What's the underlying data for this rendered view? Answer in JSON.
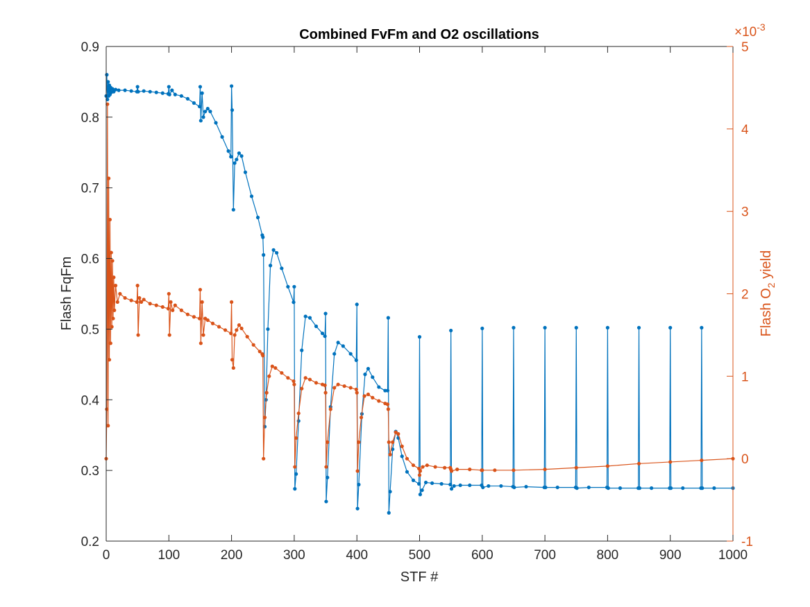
{
  "chart_data": {
    "type": "line",
    "title": "Combined FvFm and O2 oscillations",
    "xlabel": "STF #",
    "ylabel_left": "Flash FqFm",
    "ylabel_right": {
      "prefix": "Flash O",
      "subscript": "2",
      "suffix": " yield"
    },
    "right_exponent": {
      "base": "×10",
      "power": "-3"
    },
    "xlim": [
      0,
      1000
    ],
    "ylim_left": [
      0.2,
      0.9
    ],
    "ylim_right": [
      -1,
      5
    ],
    "x_ticks": [
      "0",
      "100",
      "200",
      "300",
      "400",
      "500",
      "600",
      "700",
      "800",
      "900",
      "1000"
    ],
    "y_ticks_left": [
      "0.2",
      "0.3",
      "0.4",
      "0.5",
      "0.6",
      "0.7",
      "0.8",
      "0.9"
    ],
    "y_ticks_right": [
      "-1",
      "0",
      "1",
      "2",
      "3",
      "4",
      "5"
    ],
    "grid": false,
    "colors": {
      "left": "#0072BD",
      "right": "#D95319",
      "axis": "#262626"
    },
    "series": [
      {
        "axis": "left",
        "color": "#0072BD",
        "points": [
          [
            0,
            0.83
          ],
          [
            1,
            0.86
          ],
          [
            2,
            0.825
          ],
          [
            3,
            0.85
          ],
          [
            4,
            0.83
          ],
          [
            5,
            0.845
          ],
          [
            6,
            0.832
          ],
          [
            7,
            0.842
          ],
          [
            8,
            0.835
          ],
          [
            10,
            0.84
          ],
          [
            12,
            0.836
          ],
          [
            15,
            0.839
          ],
          [
            20,
            0.838
          ],
          [
            30,
            0.838
          ],
          [
            40,
            0.837
          ],
          [
            49,
            0.836
          ],
          [
            50,
            0.843
          ],
          [
            51,
            0.836
          ],
          [
            60,
            0.837
          ],
          [
            70,
            0.836
          ],
          [
            80,
            0.835
          ],
          [
            90,
            0.834
          ],
          [
            99,
            0.833
          ],
          [
            100,
            0.843
          ],
          [
            101,
            0.832
          ],
          [
            105,
            0.838
          ],
          [
            110,
            0.832
          ],
          [
            120,
            0.83
          ],
          [
            130,
            0.826
          ],
          [
            140,
            0.82
          ],
          [
            149,
            0.815
          ],
          [
            150,
            0.843
          ],
          [
            151,
            0.795
          ],
          [
            153,
            0.834
          ],
          [
            155,
            0.8
          ],
          [
            158,
            0.808
          ],
          [
            162,
            0.812
          ],
          [
            166,
            0.808
          ],
          [
            175,
            0.792
          ],
          [
            185,
            0.772
          ],
          [
            195,
            0.752
          ],
          [
            199,
            0.744
          ],
          [
            200,
            0.844
          ],
          [
            201,
            0.81
          ],
          [
            203,
            0.669
          ],
          [
            205,
            0.735
          ],
          [
            208,
            0.74
          ],
          [
            212,
            0.749
          ],
          [
            216,
            0.745
          ],
          [
            222,
            0.722
          ],
          [
            232,
            0.688
          ],
          [
            242,
            0.658
          ],
          [
            249,
            0.633
          ],
          [
            250,
            0.63
          ],
          [
            251,
            0.605
          ],
          [
            253,
            0.362
          ],
          [
            255,
            0.4
          ],
          [
            258,
            0.5
          ],
          [
            262,
            0.59
          ],
          [
            267,
            0.612
          ],
          [
            272,
            0.608
          ],
          [
            280,
            0.586
          ],
          [
            290,
            0.56
          ],
          [
            299,
            0.538
          ],
          [
            300,
            0.56
          ],
          [
            301,
            0.274
          ],
          [
            303,
            0.295
          ],
          [
            307,
            0.37
          ],
          [
            312,
            0.47
          ],
          [
            318,
            0.518
          ],
          [
            325,
            0.516
          ],
          [
            335,
            0.504
          ],
          [
            345,
            0.494
          ],
          [
            349,
            0.49
          ],
          [
            350,
            0.522
          ],
          [
            351,
            0.256
          ],
          [
            353,
            0.29
          ],
          [
            358,
            0.39
          ],
          [
            364,
            0.465
          ],
          [
            370,
            0.481
          ],
          [
            378,
            0.476
          ],
          [
            390,
            0.465
          ],
          [
            399,
            0.456
          ],
          [
            400,
            0.535
          ],
          [
            401,
            0.246
          ],
          [
            403,
            0.28
          ],
          [
            408,
            0.38
          ],
          [
            413,
            0.436
          ],
          [
            418,
            0.444
          ],
          [
            425,
            0.432
          ],
          [
            435,
            0.418
          ],
          [
            445,
            0.413
          ],
          [
            449,
            0.413
          ],
          [
            450,
            0.516
          ],
          [
            451,
            0.24
          ],
          [
            453,
            0.27
          ],
          [
            457,
            0.33
          ],
          [
            462,
            0.355
          ],
          [
            466,
            0.346
          ],
          [
            472,
            0.32
          ],
          [
            480,
            0.298
          ],
          [
            490,
            0.286
          ],
          [
            499,
            0.281
          ],
          [
            500,
            0.489
          ],
          [
            501,
            0.266
          ],
          [
            504,
            0.272
          ],
          [
            510,
            0.283
          ],
          [
            520,
            0.282
          ],
          [
            535,
            0.281
          ],
          [
            549,
            0.28
          ],
          [
            550,
            0.498
          ],
          [
            551,
            0.274
          ],
          [
            555,
            0.278
          ],
          [
            565,
            0.279
          ],
          [
            580,
            0.279
          ],
          [
            599,
            0.279
          ],
          [
            600,
            0.501
          ],
          [
            601,
            0.276
          ],
          [
            610,
            0.278
          ],
          [
            630,
            0.278
          ],
          [
            649,
            0.277
          ],
          [
            650,
            0.502
          ],
          [
            651,
            0.276
          ],
          [
            670,
            0.277
          ],
          [
            699,
            0.276
          ],
          [
            700,
            0.502
          ],
          [
            701,
            0.276
          ],
          [
            720,
            0.276
          ],
          [
            749,
            0.276
          ],
          [
            750,
            0.502
          ],
          [
            751,
            0.275
          ],
          [
            770,
            0.276
          ],
          [
            799,
            0.276
          ],
          [
            800,
            0.502
          ],
          [
            801,
            0.275
          ],
          [
            820,
            0.275
          ],
          [
            849,
            0.275
          ],
          [
            850,
            0.502
          ],
          [
            851,
            0.275
          ],
          [
            870,
            0.275
          ],
          [
            899,
            0.275
          ],
          [
            900,
            0.502
          ],
          [
            901,
            0.275
          ],
          [
            920,
            0.275
          ],
          [
            949,
            0.275
          ],
          [
            950,
            0.502
          ],
          [
            951,
            0.275
          ],
          [
            970,
            0.275
          ],
          [
            1000,
            0.275
          ]
        ]
      },
      {
        "axis": "right",
        "color": "#D95319",
        "points": [
          [
            0,
            0.0
          ],
          [
            1,
            0.6
          ],
          [
            2,
            4.3
          ],
          [
            3,
            0.4
          ],
          [
            4,
            3.4
          ],
          [
            5,
            1.2
          ],
          [
            6,
            2.9
          ],
          [
            7,
            1.4
          ],
          [
            8,
            2.5
          ],
          [
            9,
            1.6
          ],
          [
            10,
            2.4
          ],
          [
            11,
            1.7
          ],
          [
            12,
            2.2
          ],
          [
            13,
            1.8
          ],
          [
            15,
            2.1
          ],
          [
            18,
            1.9
          ],
          [
            22,
            2.0
          ],
          [
            30,
            1.95
          ],
          [
            40,
            1.92
          ],
          [
            49,
            1.9
          ],
          [
            50,
            2.1
          ],
          [
            51,
            1.5
          ],
          [
            53,
            1.95
          ],
          [
            56,
            1.9
          ],
          [
            60,
            1.93
          ],
          [
            70,
            1.88
          ],
          [
            80,
            1.86
          ],
          [
            90,
            1.84
          ],
          [
            99,
            1.82
          ],
          [
            100,
            2.0
          ],
          [
            101,
            1.5
          ],
          [
            103,
            1.9
          ],
          [
            106,
            1.8
          ],
          [
            110,
            1.86
          ],
          [
            120,
            1.8
          ],
          [
            130,
            1.75
          ],
          [
            140,
            1.72
          ],
          [
            149,
            1.7
          ],
          [
            150,
            2.05
          ],
          [
            151,
            1.4
          ],
          [
            153,
            1.9
          ],
          [
            155,
            1.5
          ],
          [
            158,
            1.7
          ],
          [
            162,
            1.68
          ],
          [
            170,
            1.64
          ],
          [
            180,
            1.6
          ],
          [
            190,
            1.56
          ],
          [
            199,
            1.52
          ],
          [
            200,
            1.9
          ],
          [
            201,
            1.2
          ],
          [
            203,
            1.1
          ],
          [
            205,
            1.5
          ],
          [
            208,
            1.56
          ],
          [
            212,
            1.62
          ],
          [
            216,
            1.58
          ],
          [
            225,
            1.48
          ],
          [
            235,
            1.38
          ],
          [
            245,
            1.3
          ],
          [
            249,
            1.27
          ],
          [
            250,
            1.25
          ],
          [
            251,
            0.0
          ],
          [
            253,
            0.5
          ],
          [
            256,
            0.8
          ],
          [
            260,
            1.0
          ],
          [
            265,
            1.12
          ],
          [
            270,
            1.1
          ],
          [
            280,
            1.04
          ],
          [
            290,
            0.98
          ],
          [
            299,
            0.94
          ],
          [
            300,
            0.9
          ],
          [
            301,
            -0.1
          ],
          [
            303,
            0.25
          ],
          [
            307,
            0.55
          ],
          [
            312,
            0.85
          ],
          [
            318,
            0.98
          ],
          [
            325,
            0.96
          ],
          [
            335,
            0.92
          ],
          [
            345,
            0.9
          ],
          [
            349,
            0.89
          ],
          [
            350,
            0.8
          ],
          [
            351,
            -0.1
          ],
          [
            353,
            0.2
          ],
          [
            358,
            0.6
          ],
          [
            364,
            0.86
          ],
          [
            370,
            0.9
          ],
          [
            380,
            0.88
          ],
          [
            390,
            0.86
          ],
          [
            399,
            0.84
          ],
          [
            400,
            0.8
          ],
          [
            401,
            -0.15
          ],
          [
            403,
            0.2
          ],
          [
            407,
            0.5
          ],
          [
            412,
            0.76
          ],
          [
            418,
            0.78
          ],
          [
            425,
            0.74
          ],
          [
            435,
            0.7
          ],
          [
            445,
            0.67
          ],
          [
            449,
            0.66
          ],
          [
            450,
            0.6
          ],
          [
            451,
            0.2
          ],
          [
            453,
            0.05
          ],
          [
            457,
            0.2
          ],
          [
            462,
            0.32
          ],
          [
            466,
            0.3
          ],
          [
            472,
            0.15
          ],
          [
            480,
            0.0
          ],
          [
            490,
            -0.08
          ],
          [
            499,
            -0.12
          ],
          [
            500,
            -0.2
          ],
          [
            501,
            -0.15
          ],
          [
            505,
            -0.1
          ],
          [
            512,
            -0.08
          ],
          [
            525,
            -0.1
          ],
          [
            540,
            -0.11
          ],
          [
            549,
            -0.11
          ],
          [
            550,
            -0.13
          ],
          [
            551,
            -0.15
          ],
          [
            560,
            -0.13
          ],
          [
            580,
            -0.13
          ],
          [
            599,
            -0.14
          ],
          [
            600,
            -0.14
          ],
          [
            620,
            -0.14
          ],
          [
            650,
            -0.14
          ],
          [
            700,
            -0.13
          ],
          [
            750,
            -0.11
          ],
          [
            800,
            -0.09
          ],
          [
            850,
            -0.06
          ],
          [
            900,
            -0.04
          ],
          [
            950,
            -0.02
          ],
          [
            1000,
            0.0
          ]
        ]
      }
    ]
  }
}
